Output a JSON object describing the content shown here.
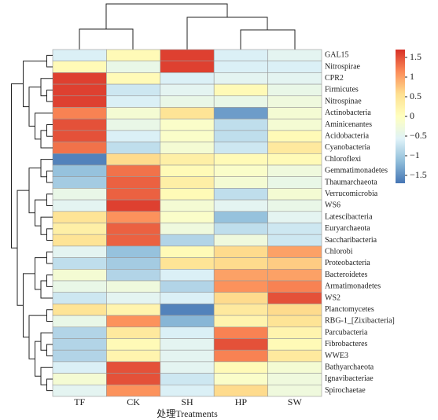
{
  "chart_data": {
    "type": "heatmap",
    "x_label": "处理Treatments",
    "columns": [
      "TF",
      "CK",
      "SH",
      "HP",
      "SW"
    ],
    "rows": [
      "GAL15",
      "Nitrospirae",
      "CPR2",
      "Firmicutes",
      "Nitrospinae",
      "Actinobacteria",
      "Aminicenantes",
      "Acidobacteria",
      "Cyanobacteria",
      "Chloroflexi",
      "Gemmatimonadetes",
      "Thaumarchaeota",
      "Verrucomicrobia",
      "WS6",
      "Latescibacteria",
      "Euryarchaeota",
      "Saccharibacteria",
      "Chlorobi",
      "Proteobacteria",
      "Bacteroidetes",
      "Armatimonadetes",
      "WS2",
      "Planctomycetes",
      "RBG-1_[Zixibacteria]",
      "Parcubacteria",
      "Fibrobacteres",
      "WWE3",
      "Bathyarchaeota",
      "Ignavibacteriae",
      "Spirochaetae"
    ],
    "values": [
      [
        -0.6,
        0.1,
        1.6,
        -0.6,
        -0.5
      ],
      [
        0.1,
        -0.4,
        1.6,
        -0.6,
        -0.6
      ],
      [
        1.6,
        0.1,
        -0.6,
        -0.5,
        -0.5
      ],
      [
        1.6,
        -0.7,
        -0.5,
        0.1,
        -0.4
      ],
      [
        1.6,
        -0.6,
        -0.4,
        -0.4,
        -0.3
      ],
      [
        1.2,
        -0.2,
        0.5,
        -1.4,
        -0.2
      ],
      [
        1.5,
        -0.4,
        -0.1,
        -0.8,
        -0.2
      ],
      [
        1.5,
        -0.6,
        -0.1,
        -0.8,
        0.1
      ],
      [
        1.3,
        -0.8,
        -0.2,
        -0.7,
        0.4
      ],
      [
        -1.6,
        0.6,
        0.3,
        0.1,
        0.1
      ],
      [
        -1.1,
        1.3,
        0.1,
        -0.1,
        -0.3
      ],
      [
        -1.0,
        1.4,
        0.3,
        -0.2,
        -0.4
      ],
      [
        -0.4,
        1.4,
        0.1,
        -0.8,
        -0.2
      ],
      [
        -0.5,
        1.6,
        -0.2,
        -0.5,
        -0.4
      ],
      [
        0.5,
        1.1,
        -0.1,
        -1.1,
        -0.5
      ],
      [
        0.3,
        1.4,
        -0.3,
        -0.8,
        -0.7
      ],
      [
        0.5,
        1.4,
        -0.9,
        -0.3,
        -0.7
      ],
      [
        -0.5,
        -1.1,
        0.1,
        0.6,
        1.0
      ],
      [
        -0.8,
        -1.0,
        0.5,
        0.6,
        0.7
      ],
      [
        -0.2,
        -0.9,
        -0.6,
        1.0,
        1.0
      ],
      [
        -0.4,
        -0.3,
        -0.9,
        1.1,
        1.2
      ],
      [
        -0.7,
        -0.5,
        -0.6,
        0.6,
        1.5
      ],
      [
        0.5,
        0.2,
        -1.6,
        0.4,
        0.6
      ],
      [
        -0.4,
        1.1,
        -1.2,
        0.2,
        0.5
      ],
      [
        -0.9,
        0.4,
        -0.6,
        1.2,
        0.2
      ],
      [
        -0.9,
        0.1,
        -0.5,
        1.5,
        0.1
      ],
      [
        -0.9,
        0.2,
        -0.5,
        1.2,
        0.4
      ],
      [
        -0.6,
        1.5,
        -0.5,
        0.1,
        -0.2
      ],
      [
        -0.2,
        1.5,
        -0.7,
        -0.1,
        -0.3
      ],
      [
        -0.5,
        1.1,
        -0.6,
        0.6,
        -0.3
      ]
    ],
    "colors": [
      "#4575b4",
      "#91bfdb",
      "#e0f3f8",
      "#ffffbf",
      "#fee090",
      "#fc8d59",
      "#d73027"
    ],
    "clim": [
      -1.7,
      1.7
    ],
    "cticks": [
      1.5,
      1,
      0.5,
      0,
      {
        "value": -0.5,
        "label": "−0.5"
      },
      {
        "value": -1,
        "label": "−1"
      },
      {
        "value": -1.5,
        "label": "−1.5"
      }
    ]
  }
}
